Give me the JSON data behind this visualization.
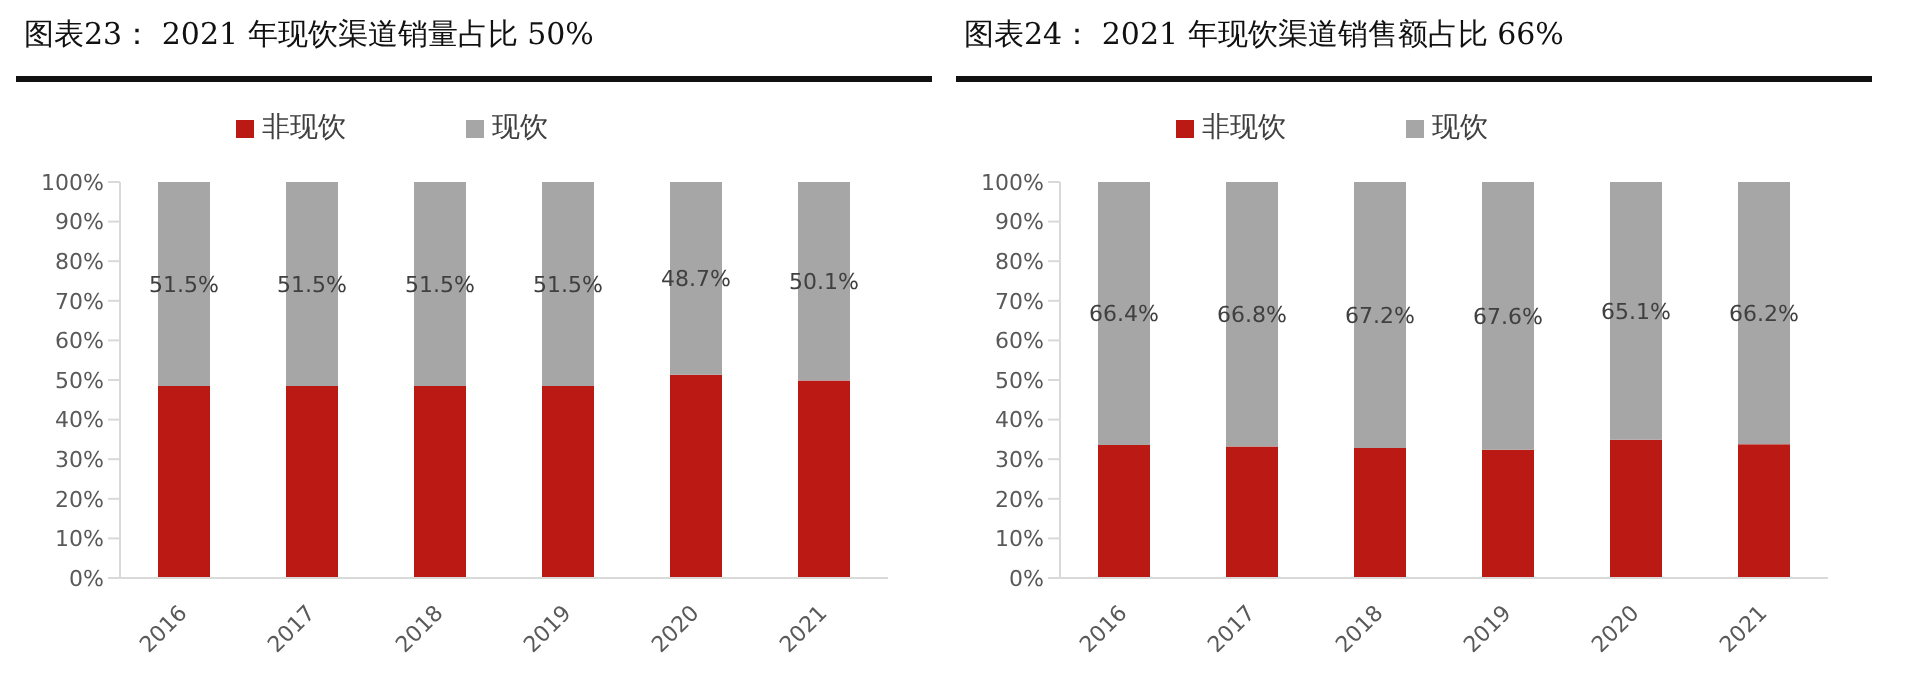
{
  "chart_data": [
    {
      "type": "bar",
      "title": "图表23： 2021 年现饮渠道销量占比 50%",
      "categories": [
        "2016",
        "2017",
        "2018",
        "2019",
        "2020",
        "2021"
      ],
      "stacked": true,
      "legend": "top",
      "grid": false,
      "series": [
        {
          "name": "非现饮",
          "color": "#bb1a14",
          "values": [
            48.5,
            48.5,
            48.5,
            48.5,
            51.3,
            49.9
          ]
        },
        {
          "name": "现饮",
          "color": "#a6a6a6",
          "values": [
            51.5,
            51.5,
            51.5,
            51.5,
            48.7,
            50.1
          ],
          "value_labels": [
            "51.5%",
            "51.5%",
            "51.5%",
            "51.5%",
            "48.7%",
            "50.1%"
          ]
        }
      ],
      "ylim": [
        0,
        100
      ],
      "yticks": [
        {
          "value": 0,
          "label": "0%"
        },
        {
          "value": 10,
          "label": "10%"
        },
        {
          "value": 20,
          "label": "20%"
        },
        {
          "value": 30,
          "label": "30%"
        },
        {
          "value": 40,
          "label": "40%"
        },
        {
          "value": 50,
          "label": "50%"
        },
        {
          "value": 60,
          "label": "60%"
        },
        {
          "value": 70,
          "label": "70%"
        },
        {
          "value": 80,
          "label": "80%"
        },
        {
          "value": 90,
          "label": "90%"
        },
        {
          "value": 100,
          "label": "100%"
        }
      ]
    },
    {
      "type": "bar",
      "title": "图表24： 2021 年现饮渠道销售额占比 66%",
      "categories": [
        "2016",
        "2017",
        "2018",
        "2019",
        "2020",
        "2021"
      ],
      "stacked": true,
      "legend": "top",
      "grid": false,
      "series": [
        {
          "name": "非现饮",
          "color": "#bb1a14",
          "values": [
            33.6,
            33.2,
            32.8,
            32.4,
            34.9,
            33.8
          ]
        },
        {
          "name": "现饮",
          "color": "#a6a6a6",
          "values": [
            66.4,
            66.8,
            67.2,
            67.6,
            65.1,
            66.2
          ],
          "value_labels": [
            "66.4%",
            "66.8%",
            "67.2%",
            "67.6%",
            "65.1%",
            "66.2%"
          ]
        }
      ],
      "ylim": [
        0,
        100
      ],
      "yticks": [
        {
          "value": 0,
          "label": "0%"
        },
        {
          "value": 10,
          "label": "10%"
        },
        {
          "value": 20,
          "label": "20%"
        },
        {
          "value": 30,
          "label": "30%"
        },
        {
          "value": 40,
          "label": "40%"
        },
        {
          "value": 50,
          "label": "50%"
        },
        {
          "value": 60,
          "label": "60%"
        },
        {
          "value": 70,
          "label": "70%"
        },
        {
          "value": 80,
          "label": "80%"
        },
        {
          "value": 90,
          "label": "90%"
        },
        {
          "value": 100,
          "label": "100%"
        }
      ]
    }
  ]
}
